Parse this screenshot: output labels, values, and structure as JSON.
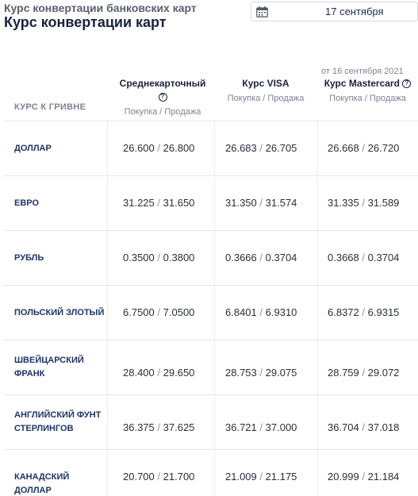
{
  "header": {
    "top_title": "Курс конвертации банковских карт",
    "main_title": "Курс конвертации карт"
  },
  "date_picker": {
    "icon": "calendar-icon",
    "value": "17 сентября"
  },
  "table": {
    "row_header_label": "КУРС К ГРИВНЕ",
    "as_of": "от 16 сентября 2021",
    "columns": [
      {
        "label": "Среднекарточный",
        "sub": "Покупка / Продажа",
        "has_help": true
      },
      {
        "label": "Курс VISA",
        "sub": "Покупка / Продажа",
        "has_help": false
      },
      {
        "label": "Курс Mastercard",
        "sub": "Покупка / Продажа",
        "has_help": true
      }
    ],
    "rows": [
      {
        "name": "ДОЛЛАР",
        "values": [
          [
            "26.600",
            "26.800"
          ],
          [
            "26.683",
            "26.705"
          ],
          [
            "26.668",
            "26.720"
          ]
        ]
      },
      {
        "name": "ЕВРО",
        "values": [
          [
            "31.225",
            "31.650"
          ],
          [
            "31.350",
            "31.574"
          ],
          [
            "31.335",
            "31.589"
          ]
        ]
      },
      {
        "name": "РУБЛЬ",
        "values": [
          [
            "0.3500",
            "0.3800"
          ],
          [
            "0.3666",
            "0.3704"
          ],
          [
            "0.3668",
            "0.3704"
          ]
        ]
      },
      {
        "name": "ПОЛЬСКИЙ ЗЛОТЫЙ",
        "values": [
          [
            "6.7500",
            "7.0500"
          ],
          [
            "6.8401",
            "6.9310"
          ],
          [
            "6.8372",
            "6.9315"
          ]
        ]
      },
      {
        "name": "ШВЕЙЦАРСКИЙ ФРАНК",
        "values": [
          [
            "28.400",
            "29.650"
          ],
          [
            "28.753",
            "29.075"
          ],
          [
            "28.759",
            "29.072"
          ]
        ]
      },
      {
        "name": "АНГЛИЙСКИЙ ФУНТ СТЕРЛИНГОВ",
        "values": [
          [
            "36.375",
            "37.625"
          ],
          [
            "36.721",
            "37.000"
          ],
          [
            "36.704",
            "37.018"
          ]
        ]
      },
      {
        "name": "КАНАДСКИЙ ДОЛЛАР",
        "values": [
          [
            "20.700",
            "21.700"
          ],
          [
            "21.009",
            "21.175"
          ],
          [
            "20.999",
            "21.184"
          ]
        ]
      }
    ],
    "separator": "/"
  }
}
